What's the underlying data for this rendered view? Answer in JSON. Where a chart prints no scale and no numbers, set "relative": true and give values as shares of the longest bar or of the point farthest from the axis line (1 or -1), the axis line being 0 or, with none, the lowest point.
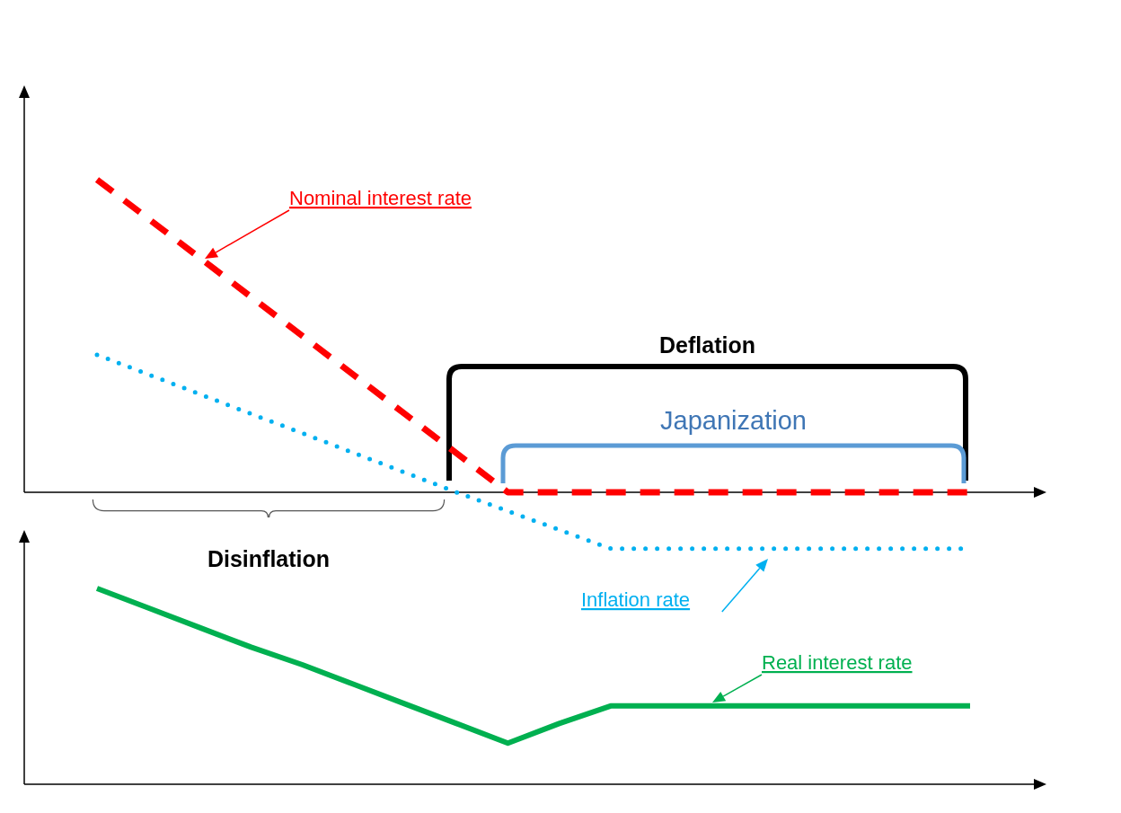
{
  "chart_data": [
    {
      "type": "line",
      "relative": true,
      "categories": [
        null,
        null,
        null,
        null,
        null,
        null,
        null,
        null,
        null,
        null,
        null,
        null,
        null,
        null,
        null,
        null,
        null,
        null
      ],
      "series": [
        {
          "name": "Nominal interest rate",
          "color": "#ff0000",
          "line_style": "dashed",
          "values": [
            1,
            0.875,
            0.75,
            0.625,
            0.5,
            0.375,
            0.25,
            0.125,
            0,
            0,
            0,
            0,
            0,
            0,
            0,
            0,
            0,
            0
          ]
        },
        {
          "name": "Inflation rate",
          "color": "#00b0f0",
          "line_style": "dotted",
          "values": [
            0.44,
            0.377,
            0.314,
            0.251,
            0.189,
            0.126,
            0.063,
            0,
            -0.06,
            -0.12,
            -0.18,
            -0.18,
            -0.18,
            -0.18,
            -0.18,
            -0.18,
            -0.18,
            -0.18
          ]
        }
      ],
      "annotations": [
        "Deflation",
        "Japanization",
        "Disinflation"
      ]
    },
    {
      "type": "line",
      "relative": true,
      "categories": [
        null,
        null,
        null,
        null,
        null,
        null,
        null,
        null,
        null,
        null,
        null,
        null,
        null,
        null,
        null,
        null,
        null,
        null
      ],
      "series": [
        {
          "name": "Real interest rate",
          "color": "#00b050",
          "line_style": "solid",
          "values": [
            1,
            0.9,
            0.8,
            0.7,
            0.61,
            0.51,
            0.41,
            0.31,
            0.21,
            0.31,
            0.4,
            0.4,
            0.4,
            0.4,
            0.4,
            0.4,
            0.4,
            0.4
          ]
        }
      ]
    }
  ]
}
